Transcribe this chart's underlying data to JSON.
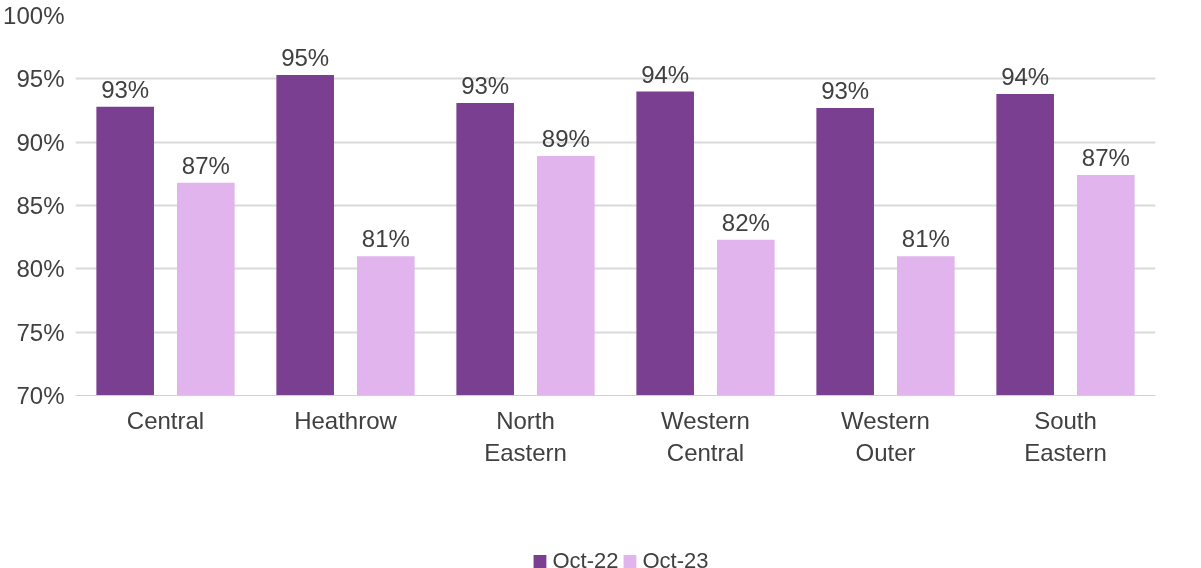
{
  "chart_data": {
    "type": "bar",
    "categories": [
      "Central",
      "Heathrow",
      "North\nEastern",
      "Western\nCentral",
      "Western\nOuter",
      "South\nEastern"
    ],
    "series": [
      {
        "name": "Oct-22",
        "color": "#7b3f91",
        "values": [
          92.8,
          95.3,
          93.1,
          94.0,
          92.7,
          93.8
        ],
        "value_labels": [
          "93%",
          "95%",
          "93%",
          "94%",
          "93%",
          "94%"
        ]
      },
      {
        "name": "Oct-23",
        "color": "#e1b4ee",
        "values": [
          86.8,
          81.0,
          88.9,
          82.3,
          81.0,
          87.4
        ],
        "value_labels": [
          "87%",
          "81%",
          "89%",
          "82%",
          "81%",
          "87%"
        ]
      }
    ],
    "ylim": [
      70,
      100
    ],
    "yticks": [
      {
        "value": 70,
        "label": "70%"
      },
      {
        "value": 75,
        "label": "75%"
      },
      {
        "value": 80,
        "label": "80%"
      },
      {
        "value": 85,
        "label": "85%"
      },
      {
        "value": 90,
        "label": "90%"
      },
      {
        "value": 95,
        "label": "95%"
      },
      {
        "value": 100,
        "label": "100%"
      }
    ],
    "grid": "y",
    "legend": "bottom"
  }
}
